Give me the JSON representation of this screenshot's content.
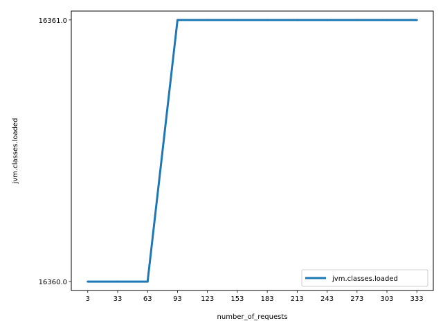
{
  "chart_data": {
    "type": "line",
    "xlabel": "number_of_requests",
    "ylabel": "jvm.classes.loaded",
    "x": [
      3,
      33,
      63,
      93,
      123,
      153,
      183,
      213,
      243,
      273,
      303,
      333
    ],
    "x_tick_labels": [
      "3",
      "33",
      "63",
      "93",
      "123",
      "153",
      "183",
      "213",
      "243",
      "273",
      "303",
      "333"
    ],
    "series": [
      {
        "name": "jvm.classes.loaded",
        "values": [
          16360.0,
          16360.0,
          16360.0,
          16361.0,
          16361.0,
          16361.0,
          16361.0,
          16361.0,
          16361.0,
          16361.0,
          16361.0,
          16361.0
        ]
      }
    ],
    "y_ticks": [
      16360.0,
      16361.0
    ],
    "y_tick_labels": [
      "16360.0",
      "16361.0"
    ],
    "xlim": [
      -13.5,
      349.5
    ],
    "ylim": [
      16359.966,
      16361.034
    ],
    "grid": false,
    "legend_position": "lower right",
    "colors": {
      "series": "#1f77b4",
      "axes": "#000000",
      "legend_border": "#cccccc"
    }
  }
}
